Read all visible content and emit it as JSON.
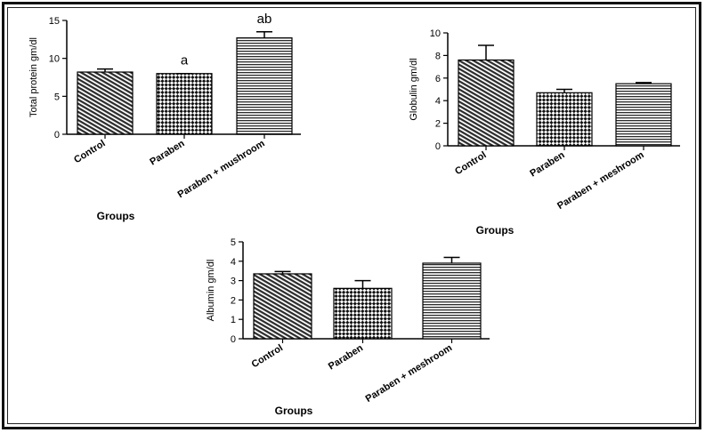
{
  "chart_data": [
    {
      "type": "bar",
      "ylabel": "Total protein gm/dl",
      "xlabel": "Groups",
      "categories": [
        "Control",
        "Paraben",
        "Paraben + mushroom"
      ],
      "values": [
        8.2,
        8.0,
        12.7
      ],
      "errors": [
        0.4,
        0.0,
        0.8
      ],
      "annotations": [
        "",
        "a",
        "ab"
      ],
      "ylim": [
        0,
        15
      ],
      "yticks": [
        "0",
        "5",
        "10",
        "15"
      ]
    },
    {
      "type": "bar",
      "ylabel": "Globulin gm/dl",
      "xlabel": "Groups",
      "categories": [
        "Control",
        "Paraben",
        "Paraben + meshroom"
      ],
      "values": [
        7.6,
        4.7,
        5.5
      ],
      "errors": [
        1.3,
        0.3,
        0.1
      ],
      "annotations": [
        "",
        "",
        ""
      ],
      "ylim": [
        0,
        10
      ],
      "yticks": [
        "0",
        "2",
        "4",
        "6",
        "8",
        "10"
      ]
    },
    {
      "type": "bar",
      "ylabel": "Albumin gm/dl",
      "xlabel": "Groups",
      "categories": [
        "Control",
        "Paraben",
        "Paraben + meshroom"
      ],
      "values": [
        3.35,
        2.6,
        3.9
      ],
      "errors": [
        0.12,
        0.4,
        0.3
      ],
      "annotations": [
        "",
        "",
        ""
      ],
      "ylim": [
        0,
        5
      ],
      "yticks": [
        "0",
        "1",
        "2",
        "3",
        "4",
        "5"
      ]
    }
  ]
}
